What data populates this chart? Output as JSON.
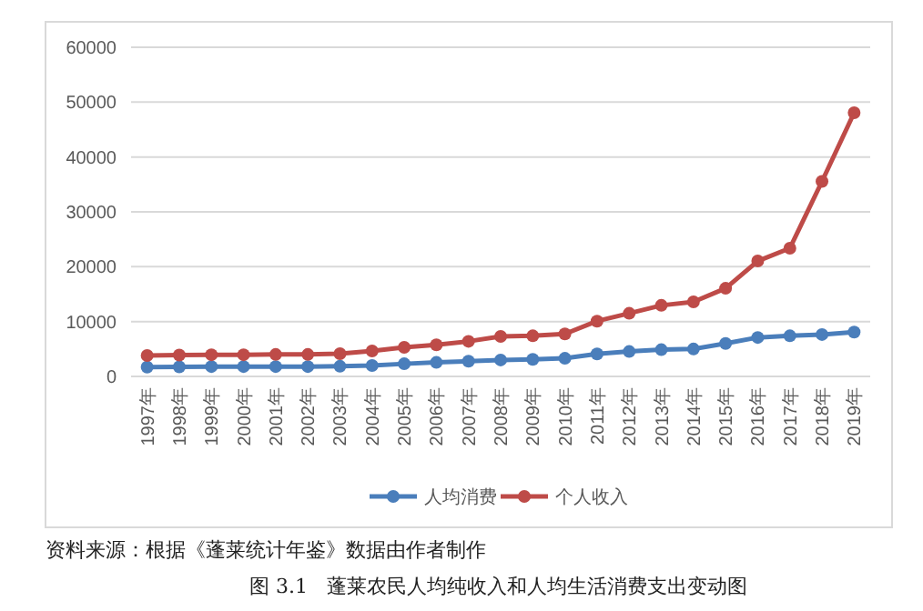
{
  "chart_data": {
    "type": "line",
    "categories": [
      "1997年",
      "1998年",
      "1999年",
      "2000年",
      "2001年",
      "2002年",
      "2003年",
      "2004年",
      "2005年",
      "2006年",
      "2007年",
      "2008年",
      "2009年",
      "2010年",
      "2011年",
      "2012年",
      "2013年",
      "2014年",
      "2015年",
      "2016年",
      "2017年",
      "2018年",
      "2019年"
    ],
    "series": [
      {
        "name": "人均消费",
        "color": "#4a7ebb",
        "values": [
          1700,
          1750,
          1800,
          1800,
          1800,
          1800,
          1850,
          2000,
          2300,
          2550,
          2770,
          3000,
          3100,
          3300,
          4100,
          4540,
          4870,
          5000,
          6000,
          7100,
          7400,
          7640,
          8080
        ]
      },
      {
        "name": "个人收入",
        "color": "#be4b48",
        "values": [
          3800,
          3900,
          3950,
          3950,
          4000,
          4000,
          4150,
          4650,
          5300,
          5760,
          6400,
          7300,
          7400,
          7750,
          10080,
          11500,
          12950,
          13600,
          16060,
          21040,
          23370,
          35550,
          48060
        ]
      }
    ],
    "ylim": [
      0,
      60000
    ],
    "yticks": [
      0,
      10000,
      20000,
      30000,
      40000,
      50000,
      60000
    ],
    "grid": "y",
    "legend": "bottom",
    "marker": "circle",
    "line_style": "solid",
    "annotations": [
      "资料来源：根据《蓬莱统计年鉴》数据由作者制作",
      "图 3.1   蓬莱农民人均纯收入和人均生活消费支出变动图"
    ]
  }
}
